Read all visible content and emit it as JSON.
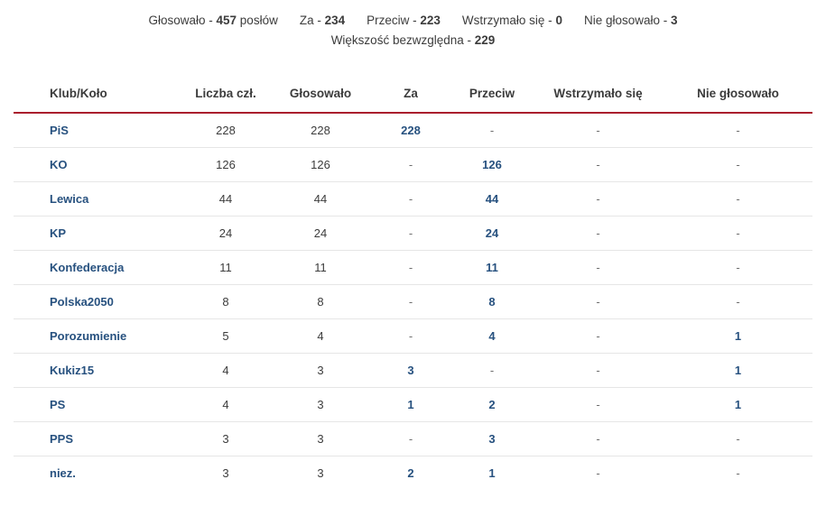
{
  "colors": {
    "accent_red": "#aa1e2d",
    "link_blue": "#27517f",
    "text": "#3c3c3c",
    "dash_gray": "#6e6e6e",
    "row_separator": "#e6e6e6"
  },
  "summary": {
    "separator": " - ",
    "line1": [
      {
        "label": "Głosowało",
        "value": "457",
        "suffix": " posłów"
      },
      {
        "label": "Za",
        "value": "234",
        "suffix": ""
      },
      {
        "label": "Przeciw",
        "value": "223",
        "suffix": ""
      },
      {
        "label": "Wstrzymało się",
        "value": "0",
        "suffix": ""
      },
      {
        "label": "Nie głosowało",
        "value": "3",
        "suffix": ""
      }
    ],
    "line2": {
      "label": "Większość bezwzględna",
      "value": "229"
    }
  },
  "table": {
    "columns": [
      {
        "key": "club",
        "label": "Klub/Koło"
      },
      {
        "key": "members",
        "label": "Liczba czł."
      },
      {
        "key": "voted",
        "label": "Głosowało"
      },
      {
        "key": "za",
        "label": "Za"
      },
      {
        "key": "przeciw",
        "label": "Przeciw"
      },
      {
        "key": "wstrzymalo",
        "label": "Wstrzymało się"
      },
      {
        "key": "nie-glosowalo",
        "label": "Nie głosowało"
      }
    ],
    "rows": [
      {
        "club": "PiS",
        "members": "228",
        "voted": "228",
        "za": "228",
        "przeciw": "-",
        "wstrzymalo": "-",
        "nie_glosowalo": "-"
      },
      {
        "club": "KO",
        "members": "126",
        "voted": "126",
        "za": "-",
        "przeciw": "126",
        "wstrzymalo": "-",
        "nie_glosowalo": "-"
      },
      {
        "club": "Lewica",
        "members": "44",
        "voted": "44",
        "za": "-",
        "przeciw": "44",
        "wstrzymalo": "-",
        "nie_glosowalo": "-"
      },
      {
        "club": "KP",
        "members": "24",
        "voted": "24",
        "za": "-",
        "przeciw": "24",
        "wstrzymalo": "-",
        "nie_glosowalo": "-"
      },
      {
        "club": "Konfederacja",
        "members": "11",
        "voted": "11",
        "za": "-",
        "przeciw": "11",
        "wstrzymalo": "-",
        "nie_glosowalo": "-"
      },
      {
        "club": "Polska2050",
        "members": "8",
        "voted": "8",
        "za": "-",
        "przeciw": "8",
        "wstrzymalo": "-",
        "nie_glosowalo": "-"
      },
      {
        "club": "Porozumienie",
        "members": "5",
        "voted": "4",
        "za": "-",
        "przeciw": "4",
        "wstrzymalo": "-",
        "nie_glosowalo": "1"
      },
      {
        "club": "Kukiz15",
        "members": "4",
        "voted": "3",
        "za": "3",
        "przeciw": "-",
        "wstrzymalo": "-",
        "nie_glosowalo": "1"
      },
      {
        "club": "PS",
        "members": "4",
        "voted": "3",
        "za": "1",
        "przeciw": "2",
        "wstrzymalo": "-",
        "nie_glosowalo": "1"
      },
      {
        "club": "PPS",
        "members": "3",
        "voted": "3",
        "za": "-",
        "przeciw": "3",
        "wstrzymalo": "-",
        "nie_glosowalo": "-"
      },
      {
        "club": "niez.",
        "members": "3",
        "voted": "3",
        "za": "2",
        "przeciw": "1",
        "wstrzymalo": "-",
        "nie_glosowalo": "-"
      }
    ]
  }
}
